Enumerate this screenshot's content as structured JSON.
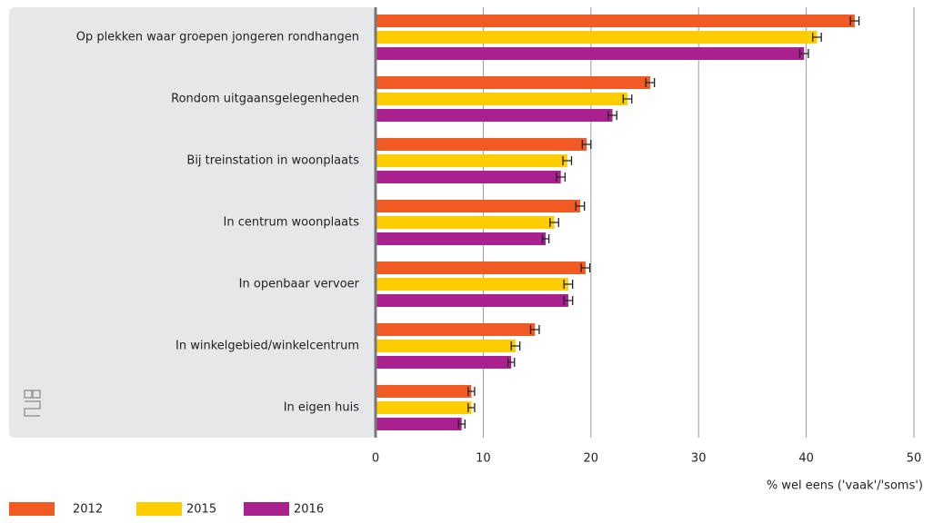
{
  "chart_data": {
    "type": "bar",
    "orientation": "horizontal",
    "categories": [
      "Op plekken waar groepen jongeren rondhangen",
      "Rondom uitgaansgelegenheden",
      "Bij treinstation in woonplaats",
      "In centrum woonplaats",
      "In openbaar vervoer",
      "In winkelgebied/winkelcentrum",
      "In eigen huis"
    ],
    "series": [
      {
        "name": "2012",
        "color": "#f15a22",
        "values": [
          44.5,
          25.5,
          19.6,
          19.0,
          19.5,
          14.8,
          8.9
        ],
        "errors": [
          0.4,
          0.4,
          0.4,
          0.4,
          0.4,
          0.4,
          0.3
        ]
      },
      {
        "name": "2015",
        "color": "#ffcc00",
        "values": [
          41.0,
          23.4,
          17.8,
          16.6,
          17.9,
          13.0,
          8.9
        ],
        "errors": [
          0.4,
          0.4,
          0.4,
          0.4,
          0.4,
          0.4,
          0.3
        ]
      },
      {
        "name": "2016",
        "color": "#a8218e",
        "values": [
          39.8,
          22.0,
          17.2,
          15.8,
          17.9,
          12.6,
          8.0
        ],
        "errors": [
          0.4,
          0.4,
          0.4,
          0.3,
          0.4,
          0.3,
          0.3
        ]
      }
    ],
    "xlabel": "% wel eens ('vaak'/'soms')",
    "xlim": [
      0,
      50
    ],
    "xticks": [
      0,
      10,
      20,
      30,
      40,
      50
    ],
    "grid": true
  }
}
